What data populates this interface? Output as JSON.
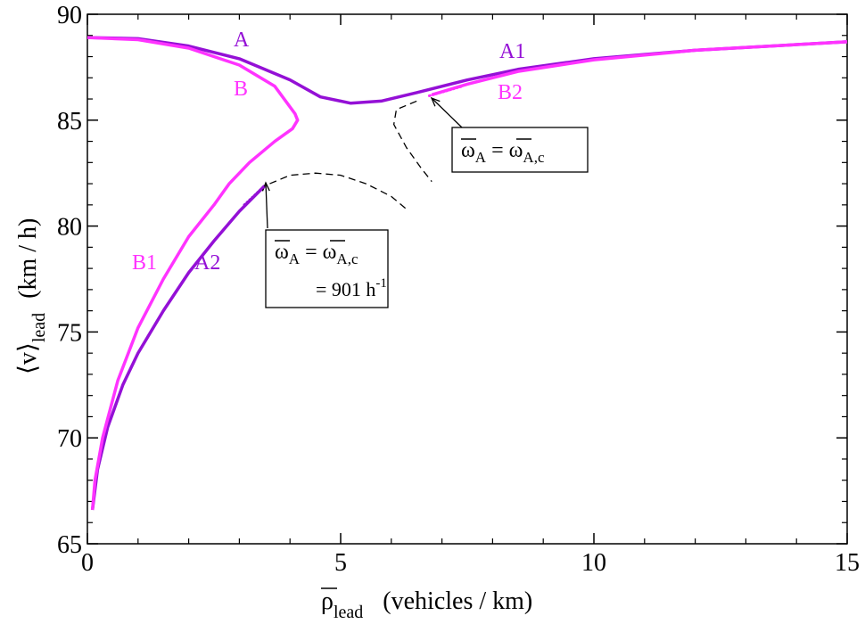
{
  "chart_data": {
    "type": "line",
    "x_label": {
      "main": "ρ",
      "sub": "lead",
      "unit": "(vehicles / km)"
    },
    "y_label": {
      "main": "⟨v⟩",
      "sub": "lead",
      "unit": "(km / h)"
    },
    "xlim": [
      0,
      15
    ],
    "xticks": [
      0,
      5,
      10,
      15
    ],
    "xminorticks": [
      1,
      2,
      3,
      4,
      6,
      7,
      8,
      9,
      11,
      12,
      13,
      14
    ],
    "ylim": [
      65,
      90
    ],
    "yticks": [
      65,
      70,
      75,
      80,
      85,
      90
    ],
    "yminorticks": [
      66,
      67,
      68,
      69,
      71,
      72,
      73,
      74,
      76,
      77,
      78,
      79,
      81,
      82,
      83,
      84,
      86,
      87,
      88,
      89
    ],
    "series": [
      {
        "color": "#9410d6",
        "x": [
          0,
          1,
          2,
          3,
          4,
          4.6,
          5.2,
          5.8,
          6.5,
          7.5,
          8.5,
          10,
          12,
          15
        ],
        "values": [
          88.9,
          88.85,
          88.5,
          87.9,
          86.9,
          86.1,
          85.8,
          85.9,
          86.3,
          86.9,
          87.4,
          87.9,
          88.3,
          88.7
        ]
      },
      {
        "color": "#9410d6",
        "x": [
          0.1,
          0.2,
          0.4,
          0.7,
          1.0,
          1.5,
          2,
          2.5,
          3,
          3.5
        ],
        "values": [
          66.6,
          68.5,
          70.5,
          72.5,
          74,
          76,
          77.8,
          79.3,
          80.7,
          81.9
        ]
      },
      {
        "color": "#ff33ff",
        "x": [
          0,
          1,
          2,
          3,
          3.7,
          4.1,
          4.15,
          4.05,
          3.7,
          3.2,
          2.8,
          2.5,
          2,
          1.5,
          1,
          0.6,
          0.3,
          0.15,
          0.1
        ],
        "values": [
          88.9,
          88.8,
          88.4,
          87.6,
          86.6,
          85.3,
          85,
          84.6,
          84.0,
          83.0,
          82,
          81,
          79.5,
          77.5,
          75.2,
          72.7,
          70,
          68,
          66.6
        ]
      },
      {
        "color": "#ff33ff",
        "x": [
          6.8,
          7.5,
          8.5,
          10,
          12,
          15
        ],
        "values": [
          86.2,
          86.7,
          87.3,
          87.85,
          88.3,
          88.7
        ]
      },
      {
        "color": "#000000",
        "dashed": true,
        "x": [
          3.6,
          4.0,
          4.5,
          5.0,
          5.5,
          6.0,
          6.3
        ],
        "values": [
          82.0,
          82.4,
          82.5,
          82.4,
          82.0,
          81.4,
          80.8
        ]
      },
      {
        "color": "#000000",
        "dashed": true,
        "x": [
          6.5,
          6.1,
          6.05,
          6.3,
          6.6,
          6.8
        ],
        "values": [
          85.9,
          85.5,
          84.8,
          83.7,
          82.7,
          82.1
        ]
      }
    ],
    "annotations": [
      "A",
      "B",
      "A1",
      "B2",
      "B1",
      "A2"
    ],
    "boxes": [
      {
        "lhs": "ω",
        "lhs_sub": "A",
        "eq": "=",
        "rhs": "ω",
        "rhs_sub": "A,c",
        "value": "= 901 h",
        "value_sup": "-1"
      },
      {
        "lhs": "ω",
        "lhs_sub": "A",
        "eq": "=",
        "rhs": "ω",
        "rhs_sub": "A,c"
      }
    ]
  }
}
